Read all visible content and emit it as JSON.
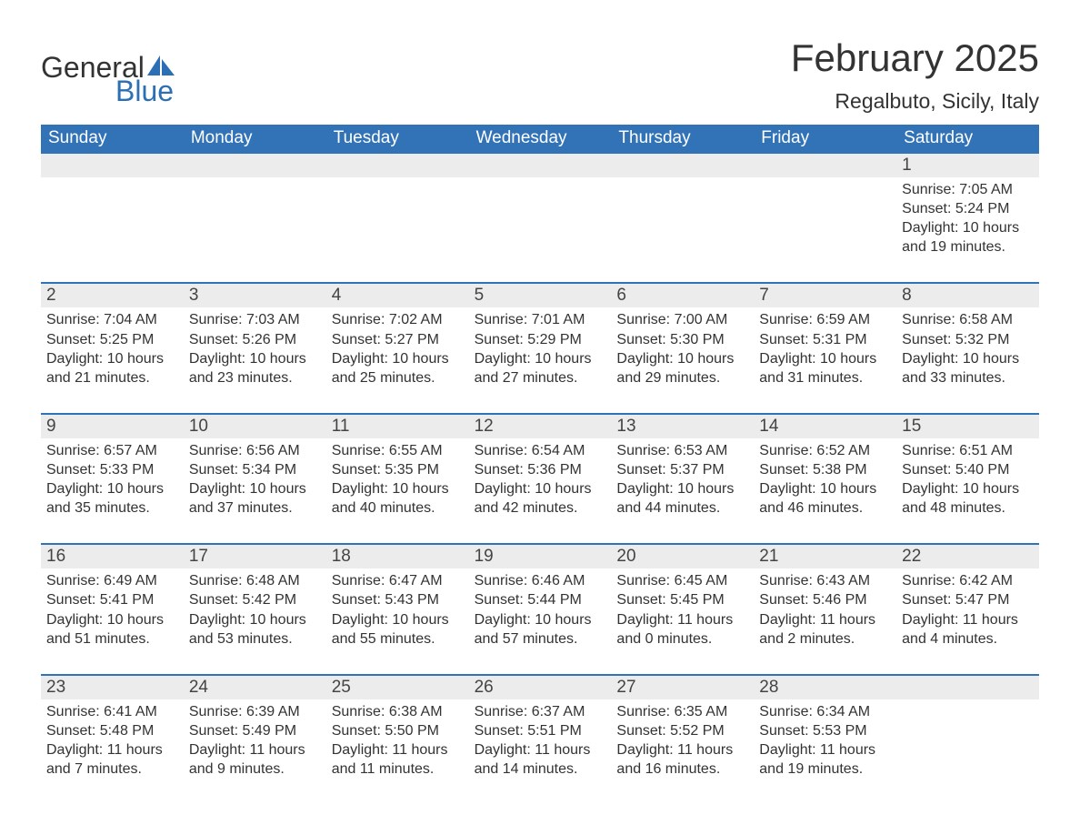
{
  "logo": {
    "general": "General",
    "blue": "Blue"
  },
  "title": "February 2025",
  "location": "Regalbuto, Sicily, Italy",
  "colors": {
    "header_bg": "#3273b8",
    "header_text": "#ffffff",
    "daynum_bg": "#ececec",
    "text": "#333333",
    "logo_blue": "#2d6fb5",
    "row_border": "#3273b8"
  },
  "day_headers": [
    "Sunday",
    "Monday",
    "Tuesday",
    "Wednesday",
    "Thursday",
    "Friday",
    "Saturday"
  ],
  "weeks": [
    [
      {
        "num": "",
        "sunrise": "",
        "sunset": "",
        "daylight": ""
      },
      {
        "num": "",
        "sunrise": "",
        "sunset": "",
        "daylight": ""
      },
      {
        "num": "",
        "sunrise": "",
        "sunset": "",
        "daylight": ""
      },
      {
        "num": "",
        "sunrise": "",
        "sunset": "",
        "daylight": ""
      },
      {
        "num": "",
        "sunrise": "",
        "sunset": "",
        "daylight": ""
      },
      {
        "num": "",
        "sunrise": "",
        "sunset": "",
        "daylight": ""
      },
      {
        "num": "1",
        "sunrise": "Sunrise: 7:05 AM",
        "sunset": "Sunset: 5:24 PM",
        "daylight": "Daylight: 10 hours and 19 minutes."
      }
    ],
    [
      {
        "num": "2",
        "sunrise": "Sunrise: 7:04 AM",
        "sunset": "Sunset: 5:25 PM",
        "daylight": "Daylight: 10 hours and 21 minutes."
      },
      {
        "num": "3",
        "sunrise": "Sunrise: 7:03 AM",
        "sunset": "Sunset: 5:26 PM",
        "daylight": "Daylight: 10 hours and 23 minutes."
      },
      {
        "num": "4",
        "sunrise": "Sunrise: 7:02 AM",
        "sunset": "Sunset: 5:27 PM",
        "daylight": "Daylight: 10 hours and 25 minutes."
      },
      {
        "num": "5",
        "sunrise": "Sunrise: 7:01 AM",
        "sunset": "Sunset: 5:29 PM",
        "daylight": "Daylight: 10 hours and 27 minutes."
      },
      {
        "num": "6",
        "sunrise": "Sunrise: 7:00 AM",
        "sunset": "Sunset: 5:30 PM",
        "daylight": "Daylight: 10 hours and 29 minutes."
      },
      {
        "num": "7",
        "sunrise": "Sunrise: 6:59 AM",
        "sunset": "Sunset: 5:31 PM",
        "daylight": "Daylight: 10 hours and 31 minutes."
      },
      {
        "num": "8",
        "sunrise": "Sunrise: 6:58 AM",
        "sunset": "Sunset: 5:32 PM",
        "daylight": "Daylight: 10 hours and 33 minutes."
      }
    ],
    [
      {
        "num": "9",
        "sunrise": "Sunrise: 6:57 AM",
        "sunset": "Sunset: 5:33 PM",
        "daylight": "Daylight: 10 hours and 35 minutes."
      },
      {
        "num": "10",
        "sunrise": "Sunrise: 6:56 AM",
        "sunset": "Sunset: 5:34 PM",
        "daylight": "Daylight: 10 hours and 37 minutes."
      },
      {
        "num": "11",
        "sunrise": "Sunrise: 6:55 AM",
        "sunset": "Sunset: 5:35 PM",
        "daylight": "Daylight: 10 hours and 40 minutes."
      },
      {
        "num": "12",
        "sunrise": "Sunrise: 6:54 AM",
        "sunset": "Sunset: 5:36 PM",
        "daylight": "Daylight: 10 hours and 42 minutes."
      },
      {
        "num": "13",
        "sunrise": "Sunrise: 6:53 AM",
        "sunset": "Sunset: 5:37 PM",
        "daylight": "Daylight: 10 hours and 44 minutes."
      },
      {
        "num": "14",
        "sunrise": "Sunrise: 6:52 AM",
        "sunset": "Sunset: 5:38 PM",
        "daylight": "Daylight: 10 hours and 46 minutes."
      },
      {
        "num": "15",
        "sunrise": "Sunrise: 6:51 AM",
        "sunset": "Sunset: 5:40 PM",
        "daylight": "Daylight: 10 hours and 48 minutes."
      }
    ],
    [
      {
        "num": "16",
        "sunrise": "Sunrise: 6:49 AM",
        "sunset": "Sunset: 5:41 PM",
        "daylight": "Daylight: 10 hours and 51 minutes."
      },
      {
        "num": "17",
        "sunrise": "Sunrise: 6:48 AM",
        "sunset": "Sunset: 5:42 PM",
        "daylight": "Daylight: 10 hours and 53 minutes."
      },
      {
        "num": "18",
        "sunrise": "Sunrise: 6:47 AM",
        "sunset": "Sunset: 5:43 PM",
        "daylight": "Daylight: 10 hours and 55 minutes."
      },
      {
        "num": "19",
        "sunrise": "Sunrise: 6:46 AM",
        "sunset": "Sunset: 5:44 PM",
        "daylight": "Daylight: 10 hours and 57 minutes."
      },
      {
        "num": "20",
        "sunrise": "Sunrise: 6:45 AM",
        "sunset": "Sunset: 5:45 PM",
        "daylight": "Daylight: 11 hours and 0 minutes."
      },
      {
        "num": "21",
        "sunrise": "Sunrise: 6:43 AM",
        "sunset": "Sunset: 5:46 PM",
        "daylight": "Daylight: 11 hours and 2 minutes."
      },
      {
        "num": "22",
        "sunrise": "Sunrise: 6:42 AM",
        "sunset": "Sunset: 5:47 PM",
        "daylight": "Daylight: 11 hours and 4 minutes."
      }
    ],
    [
      {
        "num": "23",
        "sunrise": "Sunrise: 6:41 AM",
        "sunset": "Sunset: 5:48 PM",
        "daylight": "Daylight: 11 hours and 7 minutes."
      },
      {
        "num": "24",
        "sunrise": "Sunrise: 6:39 AM",
        "sunset": "Sunset: 5:49 PM",
        "daylight": "Daylight: 11 hours and 9 minutes."
      },
      {
        "num": "25",
        "sunrise": "Sunrise: 6:38 AM",
        "sunset": "Sunset: 5:50 PM",
        "daylight": "Daylight: 11 hours and 11 minutes."
      },
      {
        "num": "26",
        "sunrise": "Sunrise: 6:37 AM",
        "sunset": "Sunset: 5:51 PM",
        "daylight": "Daylight: 11 hours and 14 minutes."
      },
      {
        "num": "27",
        "sunrise": "Sunrise: 6:35 AM",
        "sunset": "Sunset: 5:52 PM",
        "daylight": "Daylight: 11 hours and 16 minutes."
      },
      {
        "num": "28",
        "sunrise": "Sunrise: 6:34 AM",
        "sunset": "Sunset: 5:53 PM",
        "daylight": "Daylight: 11 hours and 19 minutes."
      },
      {
        "num": "",
        "sunrise": "",
        "sunset": "",
        "daylight": ""
      }
    ]
  ]
}
